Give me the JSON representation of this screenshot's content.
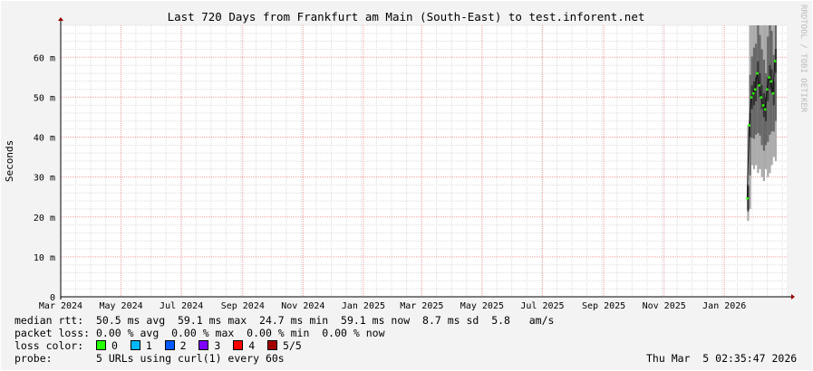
{
  "chart_data": {
    "type": "line",
    "title": "Last 720 Days from Frankfurt am Main (South-East) to test.inforent.net",
    "ylabel": "Seconds",
    "xlabel": "",
    "ylim": [
      0,
      68
    ],
    "yticks": [
      {
        "v": 0,
        "label": "0"
      },
      {
        "v": 10,
        "label": "10 m"
      },
      {
        "v": 20,
        "label": "20 m"
      },
      {
        "v": 30,
        "label": "30 m"
      },
      {
        "v": 40,
        "label": "40 m"
      },
      {
        "v": 50,
        "label": "50 m"
      },
      {
        "v": 60,
        "label": "60 m"
      }
    ],
    "xrange": [
      "2024-03-01",
      "2026-03-05"
    ],
    "xticks": [
      {
        "date": "2024-03-01",
        "label": "Mar 2024"
      },
      {
        "date": "2024-05-01",
        "label": "May 2024"
      },
      {
        "date": "2024-07-01",
        "label": "Jul 2024"
      },
      {
        "date": "2024-09-01",
        "label": "Sep 2024"
      },
      {
        "date": "2024-11-01",
        "label": "Nov 2024"
      },
      {
        "date": "2025-01-01",
        "label": "Jan 2025"
      },
      {
        "date": "2025-03-01",
        "label": "Mar 2025"
      },
      {
        "date": "2025-05-01",
        "label": "May 2025"
      },
      {
        "date": "2025-07-01",
        "label": "Jul 2025"
      },
      {
        "date": "2025-09-01",
        "label": "Sep 2025"
      },
      {
        "date": "2025-11-01",
        "label": "Nov 2025"
      },
      {
        "date": "2026-01-01",
        "label": "Jan 2026"
      }
    ],
    "grid": true,
    "series": [
      {
        "points": [
          {
            "date": "2026-01-24",
            "median": 24.7,
            "low": 19,
            "high": 43
          },
          {
            "date": "2026-01-26",
            "median": 43,
            "low": 22,
            "high": 68
          },
          {
            "date": "2026-01-28",
            "median": 50,
            "low": 33,
            "high": 68
          },
          {
            "date": "2026-01-30",
            "median": 51,
            "low": 32,
            "high": 68
          },
          {
            "date": "2026-02-01",
            "median": 52,
            "low": 33,
            "high": 68
          },
          {
            "date": "2026-02-03",
            "median": 56,
            "low": 31,
            "high": 68
          },
          {
            "date": "2026-02-05",
            "median": 53,
            "low": 32,
            "high": 68
          },
          {
            "date": "2026-02-07",
            "median": 50,
            "low": 30,
            "high": 68
          },
          {
            "date": "2026-02-09",
            "median": 48,
            "low": 29,
            "high": 68
          },
          {
            "date": "2026-02-11",
            "median": 47,
            "low": 32,
            "high": 68
          },
          {
            "date": "2026-02-13",
            "median": 52,
            "low": 30,
            "high": 68
          },
          {
            "date": "2026-02-15",
            "median": 55,
            "low": 31,
            "high": 68
          },
          {
            "date": "2026-02-17",
            "median": 54,
            "low": 33,
            "high": 68
          },
          {
            "date": "2026-02-19",
            "median": 51,
            "low": 35,
            "high": 68
          },
          {
            "date": "2026-02-21",
            "median": 59.1,
            "low": 34,
            "high": 68
          }
        ]
      }
    ]
  },
  "watermark": "RRDTOOL / TOBI OETIKER",
  "legend": {
    "median_rtt": "median rtt:  50.5 ms avg  59.1 ms max  24.7 ms min  59.1 ms now  8.7 ms sd  5.8   am/s",
    "packet_loss": "packet loss: 0.00 % avg  0.00 % max  0.00 % min  0.00 % now",
    "loss_color_label": "loss color:",
    "loss_colors": [
      {
        "label": "0",
        "color": "#26ff00"
      },
      {
        "label": "1",
        "color": "#00b8ff"
      },
      {
        "label": "2",
        "color": "#0059ff"
      },
      {
        "label": "3",
        "color": "#7e00ff"
      },
      {
        "label": "4",
        "color": "#ff0000"
      },
      {
        "label": "5/5",
        "color": "#a10000"
      }
    ],
    "probe_label": "probe:",
    "probe_value": "5 URLs using curl(1) every 60s",
    "timestamp": "Thu Mar  5 02:35:47 2026"
  }
}
